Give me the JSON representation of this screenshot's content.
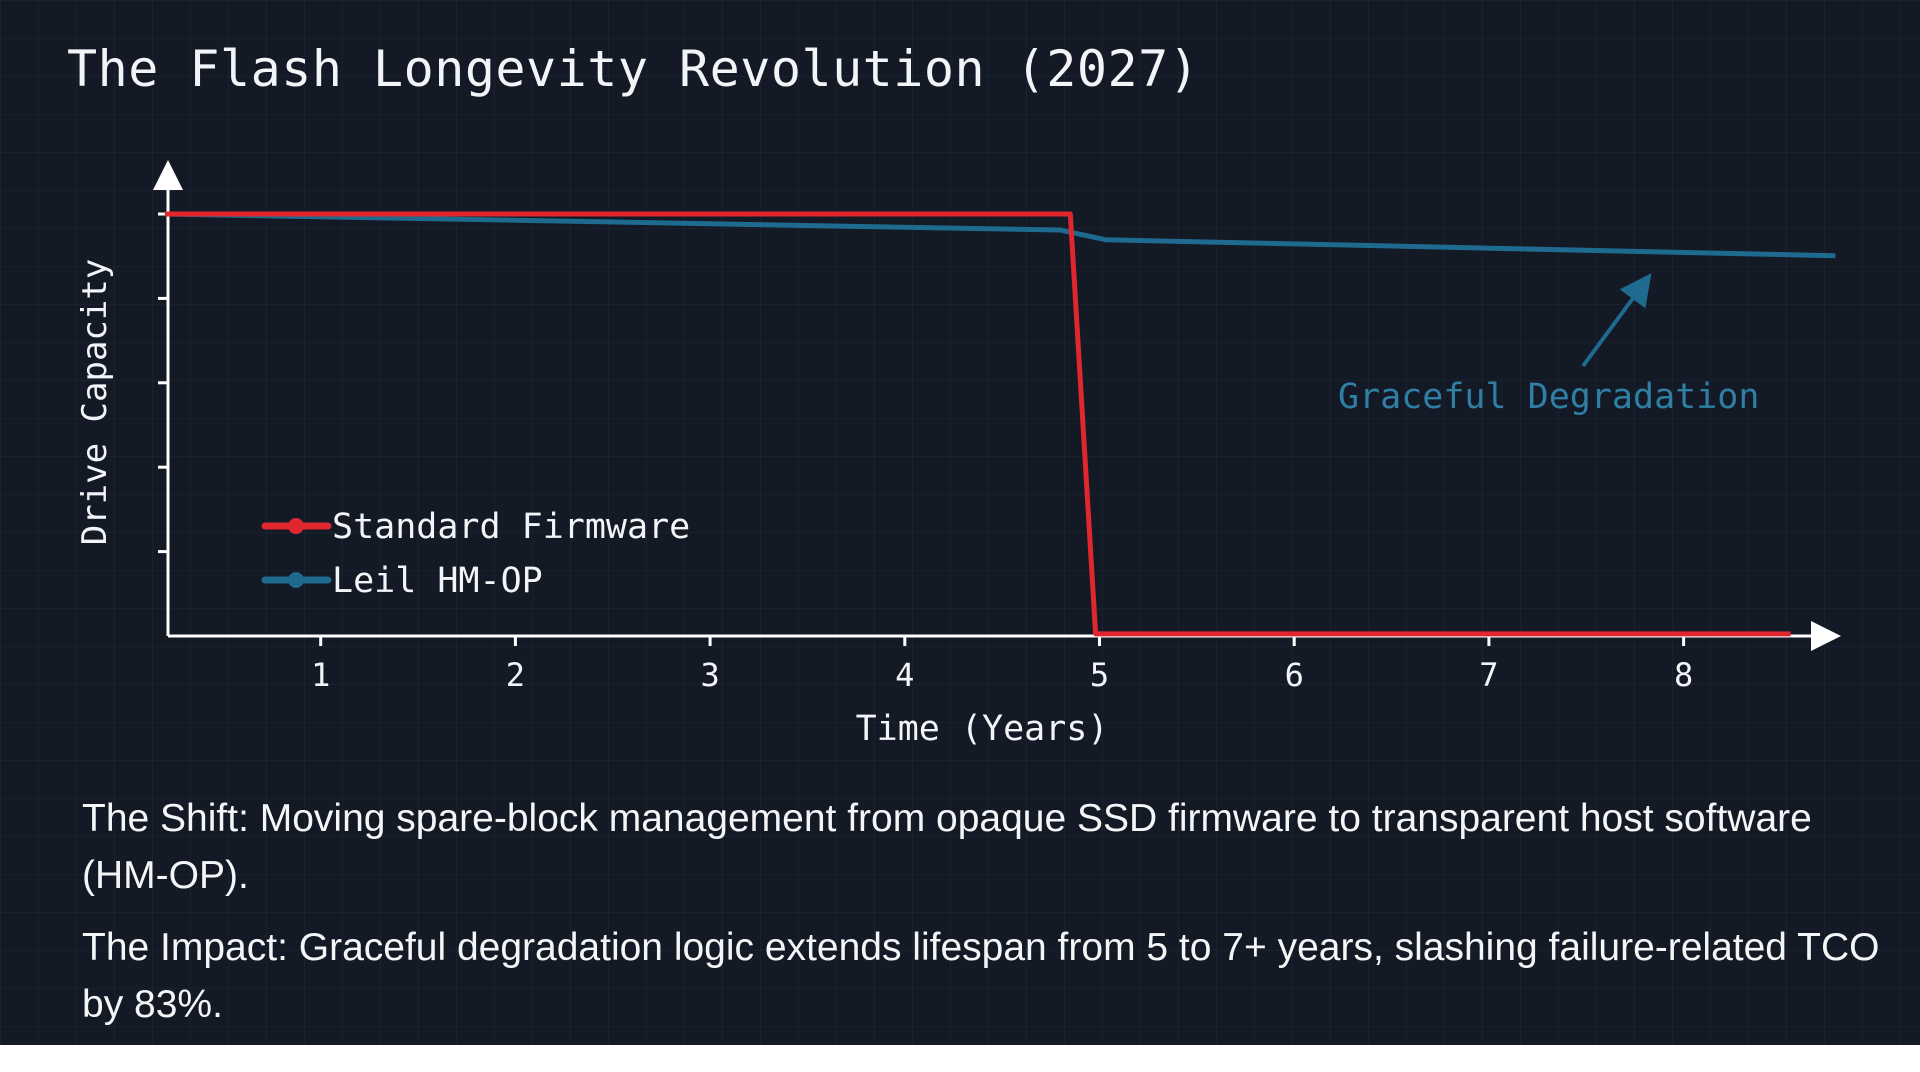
{
  "title": "The Flash Longevity Revolution (2027)",
  "chart_data": {
    "type": "line",
    "title": "The Flash Longevity Revolution (2027)",
    "xlabel": "Time (Years)",
    "ylabel": "Drive Capacity",
    "xlim": [
      0.2,
      8.7
    ],
    "ylim": [
      0,
      110
    ],
    "x_ticks": [
      "1",
      "2",
      "3",
      "4",
      "5",
      "6",
      "7",
      "8"
    ],
    "y_ticks_count": 5,
    "grid": false,
    "legend_position": "bottom-left",
    "series": [
      {
        "name": "Standard Firmware",
        "color": "#e0262e",
        "x": [
          0.2,
          4.85,
          4.98,
          8.55
        ],
        "y": [
          100,
          100,
          0.5,
          0.5
        ]
      },
      {
        "name": "Leil HM-OP",
        "color": "#1f6a8f",
        "x": [
          0.2,
          4.8,
          5.03,
          8.78
        ],
        "y": [
          100,
          96.2,
          93.9,
          90.1
        ]
      }
    ],
    "annotations": [
      {
        "text": "Graceful Degradation",
        "color": "#2f7ea3",
        "points_to_x": 7.8,
        "points_to_y": 92
      }
    ]
  },
  "body": {
    "shift": "The Shift: Moving spare-block management from opaque SSD firmware to transparent host software (HM-OP).",
    "impact": "The Impact: Graceful degradation logic extends lifespan from 5 to 7+ years, slashing failure-related TCO by 83%."
  }
}
